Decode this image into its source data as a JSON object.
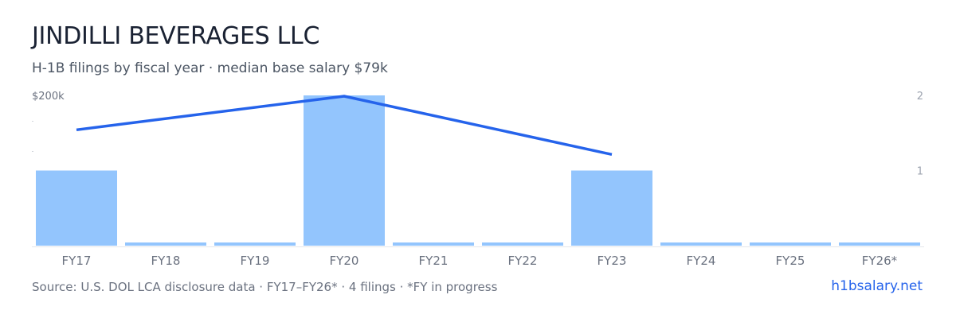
{
  "title": "JINDILLI BEVERAGES LLC",
  "subtitle": "H-1B filings by fiscal year · median base salary $79k",
  "footer": {
    "source": "Source: U.S. DOL LCA disclosure data · FY17–FY26* · 4 filings · *FY in progress",
    "brand": "h1bsalary.net"
  },
  "colors": {
    "bar": "#93c5fd",
    "line": "#2563eb",
    "axis_text": "#9ca3af",
    "tick_text": "#6b7280",
    "baseline": "#e5e7eb"
  },
  "chart_data": {
    "type": "bar",
    "categories": [
      "FY17",
      "FY18",
      "FY19",
      "FY20",
      "FY21",
      "FY22",
      "FY23",
      "FY24",
      "FY25",
      "FY26*"
    ],
    "series": [
      {
        "kind": "bar",
        "axis": "right",
        "values": [
          1,
          0,
          0,
          2,
          0,
          0,
          1,
          0,
          0,
          0
        ]
      },
      {
        "kind": "line",
        "axis": "left",
        "values": [
          155000,
          null,
          null,
          200000,
          null,
          null,
          122000,
          null,
          null,
          null
        ]
      }
    ],
    "left_axis": {
      "ylim": [
        0,
        200000
      ],
      "tick_labels": [
        "$200k"
      ]
    },
    "right_axis": {
      "ylim": [
        0,
        2
      ],
      "tick_labels": [
        "2",
        "1"
      ]
    }
  }
}
